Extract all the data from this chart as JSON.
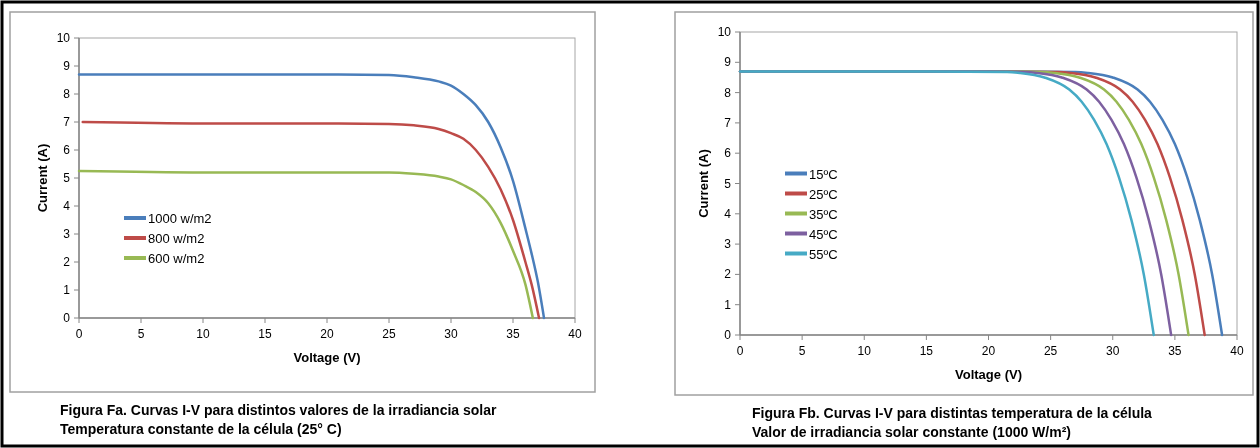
{
  "chart_data": [
    {
      "type": "line",
      "xlabel": "Voltage (V)",
      "ylabel": "Current (A)",
      "xlim": [
        0,
        40
      ],
      "ylim": [
        0,
        10
      ],
      "xticks": [
        0,
        5,
        10,
        15,
        20,
        25,
        30,
        35,
        40
      ],
      "yticks": [
        0,
        1,
        2,
        3,
        4,
        5,
        6,
        7,
        8,
        9,
        10
      ],
      "grid": false,
      "legend": "bottom left",
      "line_style": "solid",
      "annotations": [
        "Figura Fa. Curvas I-V para distintos valores de la irradiancia solar",
        "Temperatura constante de la célula (25° C)"
      ],
      "series": [
        {
          "name": "1000 w/m2",
          "color": "#4a7ebb",
          "x": [
            0,
            10,
            20,
            25,
            27,
            29,
            30,
            31,
            32,
            33,
            34,
            35,
            36,
            36.5,
            37,
            37.5
          ],
          "values": [
            8.7,
            8.7,
            8.7,
            8.68,
            8.6,
            8.45,
            8.3,
            8.0,
            7.6,
            7.0,
            6.1,
            4.9,
            3.2,
            2.3,
            1.3,
            0
          ]
        },
        {
          "name": "800 w/m2",
          "color": "#be4b48",
          "x": [
            0.3,
            10,
            20,
            25,
            27,
            29,
            30,
            31,
            32,
            33,
            34,
            35,
            36,
            36.5,
            37.1
          ],
          "values": [
            7.0,
            6.95,
            6.95,
            6.93,
            6.88,
            6.75,
            6.6,
            6.4,
            6.0,
            5.4,
            4.6,
            3.5,
            2.0,
            1.2,
            0
          ]
        },
        {
          "name": "600 w/m2",
          "color": "#98b954",
          "x": [
            0,
            10,
            20,
            25,
            27,
            29,
            30,
            31,
            32,
            33,
            34,
            35,
            36,
            36.6
          ],
          "values": [
            5.25,
            5.2,
            5.2,
            5.2,
            5.15,
            5.05,
            4.95,
            4.75,
            4.5,
            4.1,
            3.4,
            2.4,
            1.2,
            0
          ]
        }
      ]
    },
    {
      "type": "line",
      "xlabel": "Voltage (V)",
      "ylabel": "Current (A)",
      "xlim": [
        0,
        40
      ],
      "ylim": [
        0,
        10
      ],
      "xticks": [
        0,
        5,
        10,
        15,
        20,
        25,
        30,
        35,
        40
      ],
      "yticks": [
        0,
        1,
        2,
        3,
        4,
        5,
        6,
        7,
        8,
        9,
        10
      ],
      "grid": false,
      "legend": "left",
      "line_style": "solid",
      "annotations": [
        "Figura Fb. Curvas I-V para distintas temperatura de la célula",
        "Valor de irradiancia solar constante (1000 W/m²)"
      ],
      "series": [
        {
          "name": "15ºC",
          "color": "#4a7ebb",
          "x": [
            0,
            20,
            27,
            28,
            30,
            32,
            33,
            34,
            35,
            36,
            37,
            38,
            38.8
          ],
          "values": [
            8.7,
            8.7,
            8.68,
            8.65,
            8.5,
            8.1,
            7.7,
            7.1,
            6.3,
            5.2,
            3.8,
            2.0,
            0
          ]
        },
        {
          "name": "25ºC",
          "color": "#be4b48",
          "x": [
            0,
            20,
            25.6,
            26.6,
            28.6,
            30.6,
            31.6,
            32.6,
            33.6,
            34.6,
            35.6,
            36.6,
            37.4
          ],
          "values": [
            8.7,
            8.7,
            8.68,
            8.65,
            8.5,
            8.1,
            7.7,
            7.1,
            6.3,
            5.2,
            3.8,
            2.0,
            0
          ]
        },
        {
          "name": "35ºC",
          "color": "#98b954",
          "x": [
            0,
            20,
            24.3,
            25.3,
            27.3,
            29.3,
            30.3,
            31.3,
            32.3,
            33.3,
            34.3,
            35.3,
            36.1
          ],
          "values": [
            8.7,
            8.7,
            8.68,
            8.65,
            8.5,
            8.1,
            7.7,
            7.1,
            6.3,
            5.2,
            3.8,
            2.0,
            0
          ]
        },
        {
          "name": "45ºC",
          "color": "#7d60a0",
          "x": [
            0,
            20,
            22.9,
            23.9,
            25.9,
            27.9,
            28.9,
            29.9,
            30.9,
            31.9,
            32.9,
            33.9,
            34.7
          ],
          "values": [
            8.7,
            8.7,
            8.68,
            8.65,
            8.5,
            8.1,
            7.7,
            7.1,
            6.3,
            5.2,
            3.8,
            2.0,
            0
          ]
        },
        {
          "name": "55ºC",
          "color": "#46aac5",
          "x": [
            0,
            15,
            21.5,
            22.5,
            24.5,
            26.5,
            27.5,
            28.5,
            29.5,
            30.5,
            31.5,
            32.5,
            33.3
          ],
          "values": [
            8.7,
            8.7,
            8.68,
            8.65,
            8.5,
            8.1,
            7.7,
            7.1,
            6.3,
            5.2,
            3.8,
            2.0,
            0
          ]
        }
      ]
    }
  ]
}
